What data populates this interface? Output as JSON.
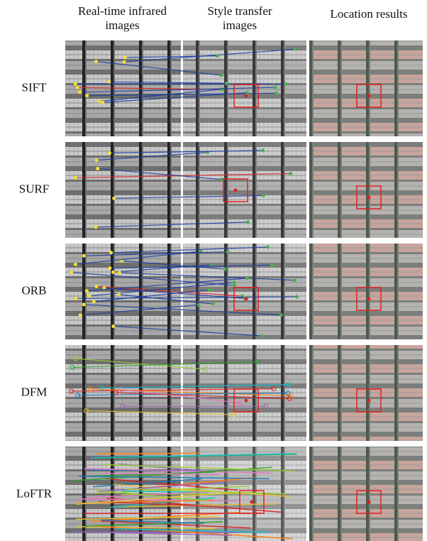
{
  "header": {
    "columns": [
      "Real-time infrared images",
      "Style transfer images",
      "Location results"
    ]
  },
  "rows": [
    {
      "label": "SIFT"
    },
    {
      "label": "SURF"
    },
    {
      "label": "ORB"
    },
    {
      "label": "DFM"
    },
    {
      "label": "LoFTR"
    }
  ]
}
